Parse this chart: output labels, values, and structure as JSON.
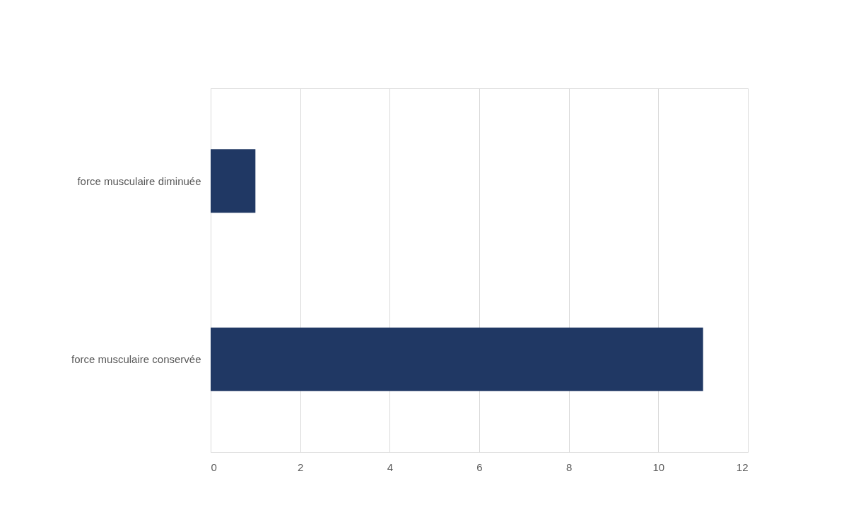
{
  "chart_data": {
    "type": "bar",
    "orientation": "horizontal",
    "categories": [
      "force musculaire diminuée",
      "force musculaire conservée"
    ],
    "values": [
      1,
      11
    ],
    "color": "#203864",
    "xlim": [
      0,
      12
    ],
    "xticks": [
      0,
      2,
      4,
      6,
      8,
      10,
      12
    ],
    "grid": "x"
  }
}
